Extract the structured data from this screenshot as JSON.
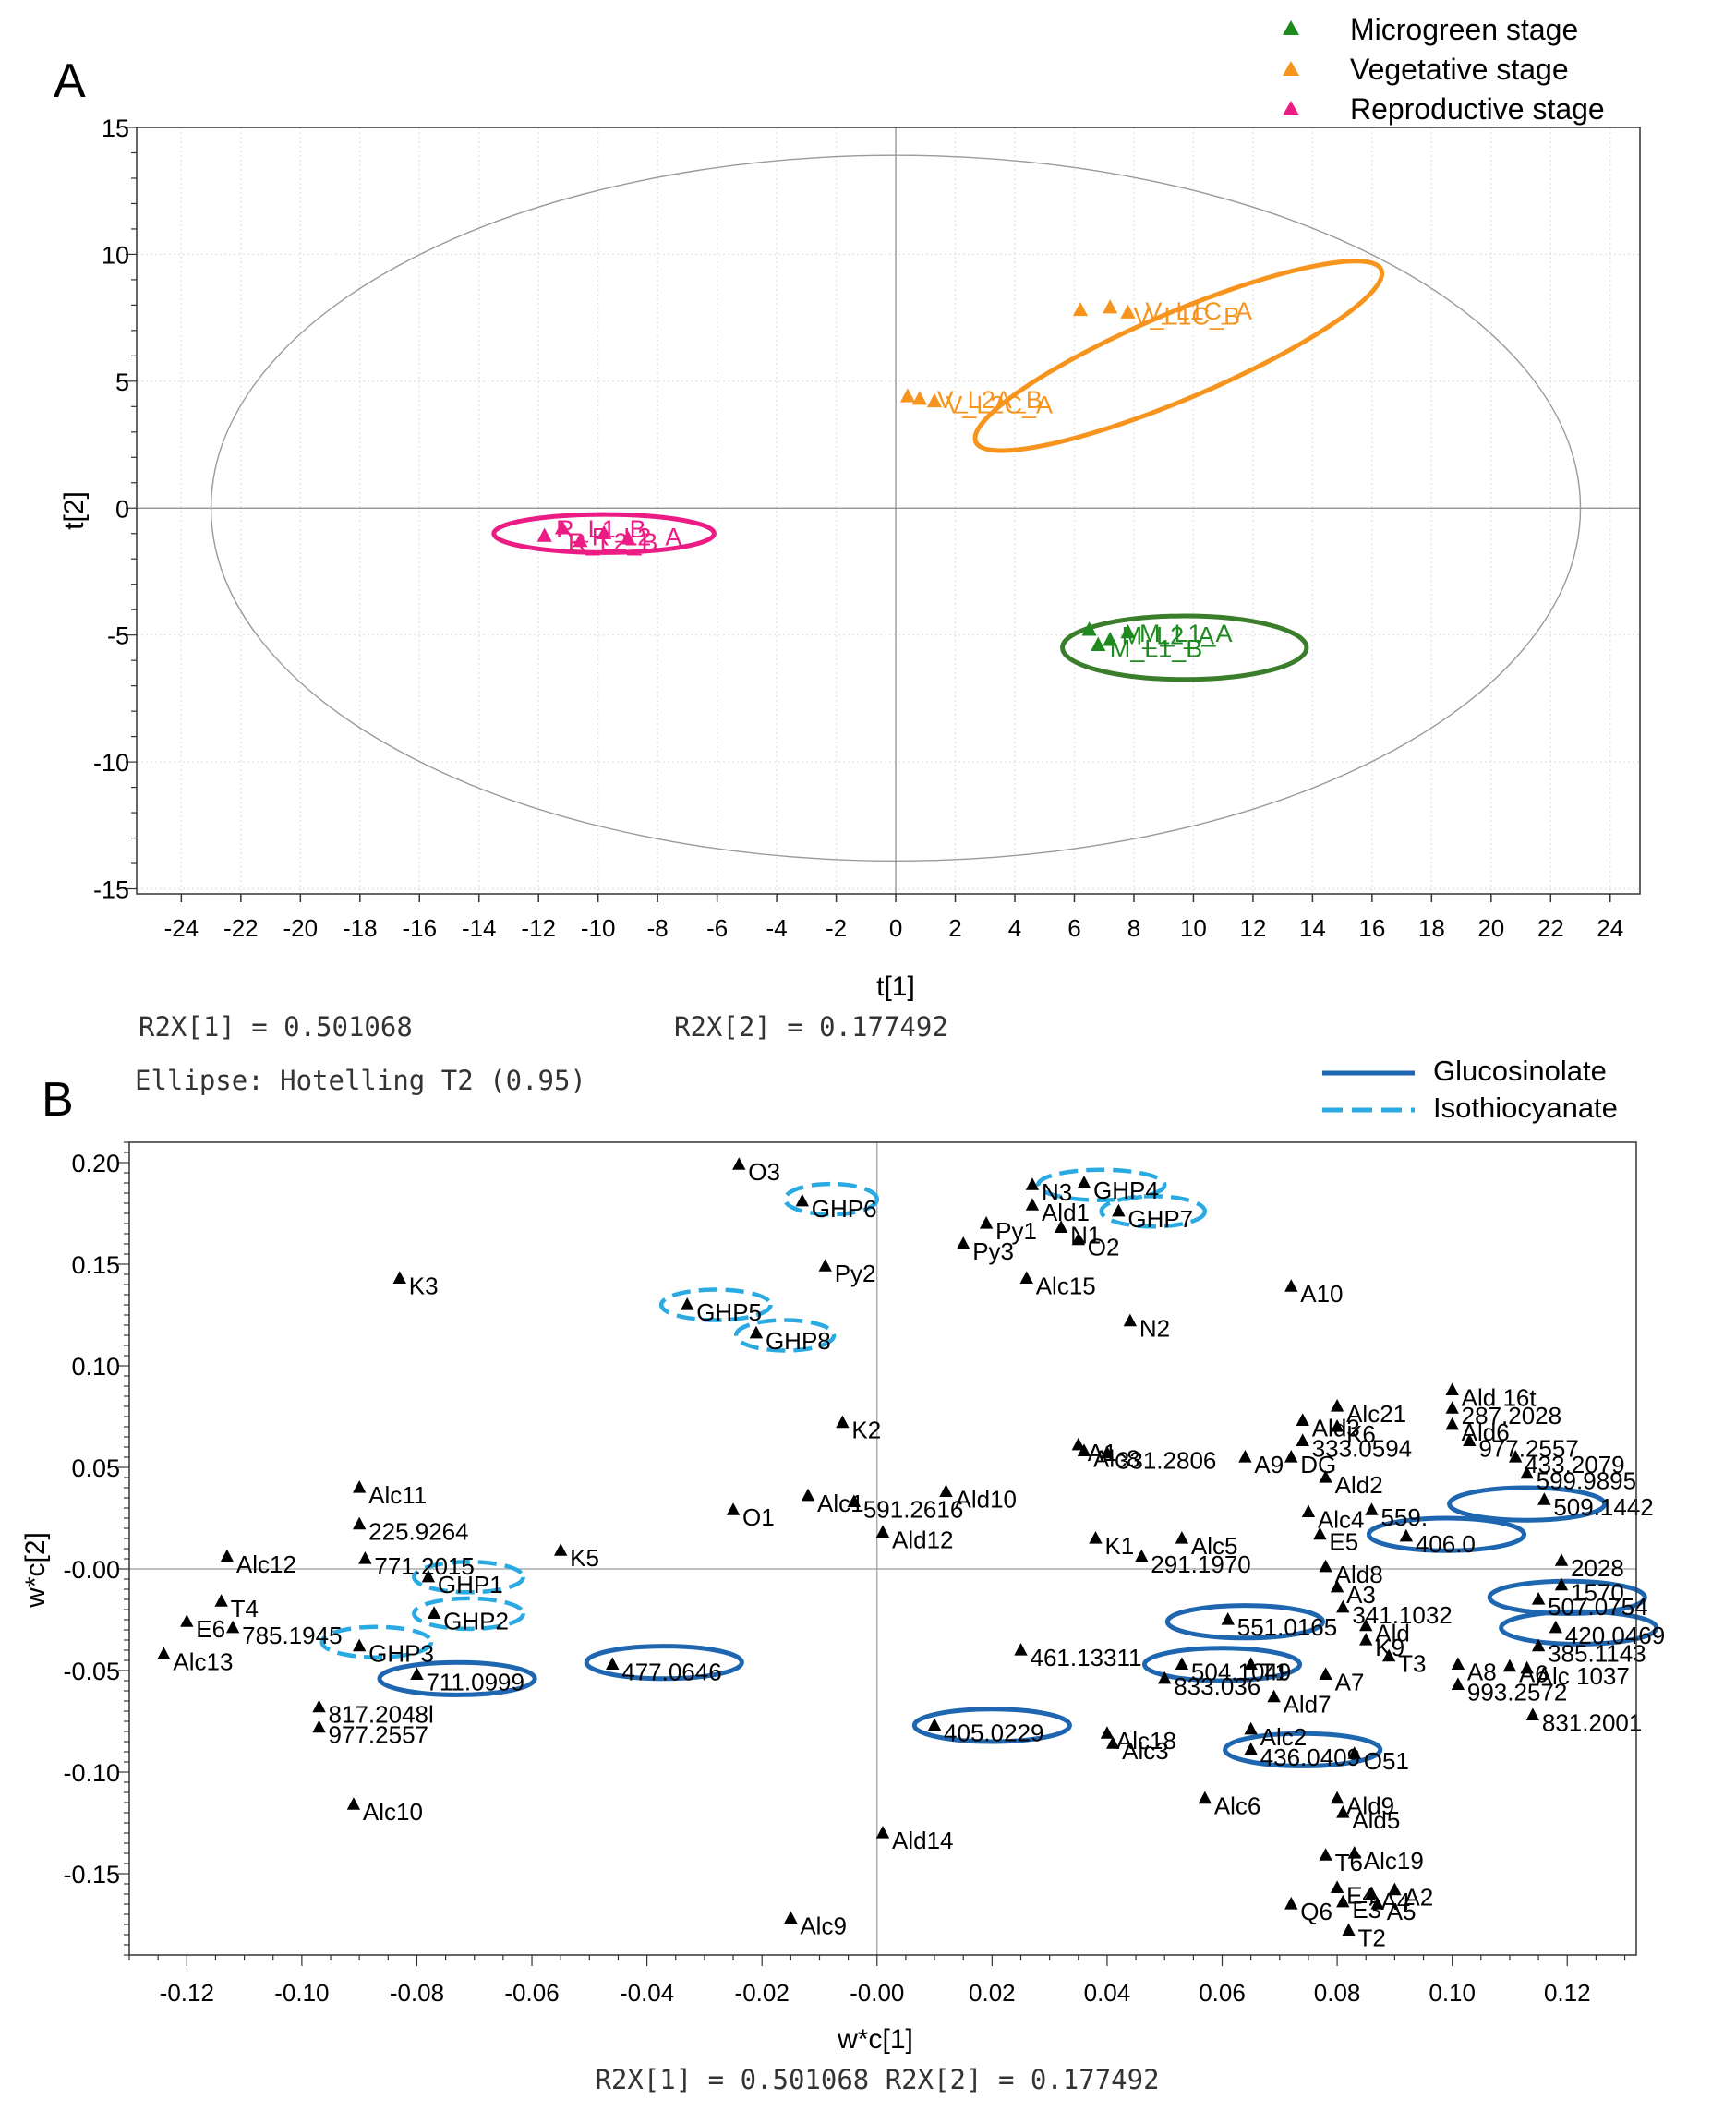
{
  "figure": {
    "panel_a_label": "A",
    "panel_b_label": "B"
  },
  "chart_data": [
    {
      "type": "scatter",
      "panel": "A",
      "xlabel": "t[1]",
      "ylabel": "t[2]",
      "xlim": [
        -25.5,
        25
      ],
      "ylim": [
        -15.2,
        15
      ],
      "xticks": [
        "-24",
        "-22",
        "-20",
        "-18",
        "-16",
        "-14",
        "-12",
        "-10",
        "-8",
        "-6",
        "-4",
        "-2",
        "0",
        "2",
        "4",
        "6",
        "8",
        "10",
        "12",
        "14",
        "16",
        "18",
        "20",
        "22",
        "24"
      ],
      "yticks": [
        "15",
        "10",
        "5",
        "0",
        "-5",
        "-10",
        "-15"
      ],
      "grid": true,
      "footer_left": "R2X[1] = 0.501068",
      "footer_right": "R2X[2] = 0.177492",
      "ellipse_note": "Ellipse: Hotelling T2 (0.95)",
      "hotelling": {
        "cx": 0,
        "cy": 0,
        "rx": 23,
        "ry": 13.9
      },
      "legend_position": "top-right",
      "legend": [
        {
          "label": "Microgreen stage",
          "color": "#1e8a1e"
        },
        {
          "label": "Vegetative stage",
          "color": "#f7941d"
        },
        {
          "label": "Reproductive stage",
          "color": "#ec1c85"
        }
      ],
      "groups": [
        {
          "color": "#f7941d",
          "ring": "#f7941d",
          "ellipse": {
            "cx": 9.5,
            "cy": 6.0,
            "rx": 14.8,
            "ry": 1.7,
            "angle": -23
          },
          "points": [
            [
              6.2,
              7.8
            ],
            [
              7.2,
              7.9
            ],
            [
              7.8,
              7.7
            ],
            [
              0.4,
              4.4
            ],
            [
              0.8,
              4.3
            ],
            [
              1.3,
              4.2
            ]
          ],
          "labels": [
            {
              "text": "V_L1C_B",
              "x": 7.8,
              "y": 7.6
            },
            {
              "text": "V_L1C_A",
              "x": 8.2,
              "y": 7.8
            },
            {
              "text": "V_L2A_B",
              "x": 1.2,
              "y": 4.3
            },
            {
              "text": "V_L2C_A",
              "x": 1.5,
              "y": 4.1
            }
          ]
        },
        {
          "color": "#ec1c85",
          "ring": "#ec1c85",
          "ellipse": {
            "cx": -9.8,
            "cy": -1.0,
            "rx": 7.4,
            "ry": 0.75,
            "angle": 0
          },
          "points": [
            [
              -11.8,
              -1.1
            ],
            [
              -11.2,
              -0.8
            ],
            [
              -10.6,
              -1.3
            ],
            [
              -9.8,
              -1.0
            ],
            [
              -9.0,
              -1.2
            ]
          ],
          "labels": [
            {
              "text": "R_L1_B",
              "x": -11.6,
              "y": -0.8
            },
            {
              "text": "R_L2_B",
              "x": -11.2,
              "y": -1.3
            },
            {
              "text": "R_L2_A",
              "x": -10.4,
              "y": -1.1
            }
          ]
        },
        {
          "color": "#1e8a1e",
          "ring": "#3a7d2a",
          "ellipse": {
            "cx": 9.7,
            "cy": -5.5,
            "rx": 8.2,
            "ry": 1.25,
            "angle": 0
          },
          "points": [
            [
              6.5,
              -4.8
            ],
            [
              7.2,
              -5.2
            ],
            [
              7.8,
              -4.9
            ],
            [
              6.8,
              -5.4
            ]
          ],
          "labels": [
            {
              "text": "M_L2_A",
              "x": 7.4,
              "y": -5.0
            },
            {
              "text": "M_L1_B",
              "x": 7.0,
              "y": -5.5
            },
            {
              "text": "M_L1_A",
              "x": 8.0,
              "y": -4.9
            }
          ]
        }
      ]
    },
    {
      "type": "scatter",
      "panel": "B",
      "xlabel": "w*c[1]",
      "ylabel": "w*c[2]",
      "xlim": [
        -0.13,
        0.132
      ],
      "ylim": [
        -0.19,
        0.21
      ],
      "xticks": [
        "-0.12",
        "-0.10",
        "-0.08",
        "-0.06",
        "-0.04",
        "-0.02",
        "-0.00",
        "0.02",
        "0.04",
        "0.06",
        "0.08",
        "0.10",
        "0.12"
      ],
      "yticks": [
        "0.20",
        "0.15",
        "0.10",
        "0.05",
        "-0.00",
        "-0.05",
        "-0.10",
        "-0.15"
      ],
      "grid": false,
      "footer": "R2X[1] = 0.501068 R2X[2] = 0.177492",
      "legend_position": "top-right",
      "legend": [
        {
          "label": "Glucosinolate",
          "style": "solid",
          "color": "#1f66b0"
        },
        {
          "label": "Isothiocyanate",
          "style": "dashed",
          "color": "#29aae2"
        }
      ],
      "points": [
        [
          "O3",
          -0.024,
          0.199
        ],
        [
          "GHP6",
          -0.013,
          0.181
        ],
        [
          "N3",
          0.027,
          0.189
        ],
        [
          "GHP4",
          0.036,
          0.19
        ],
        [
          "Ald1",
          0.027,
          0.179
        ],
        [
          "GHP7",
          0.042,
          0.176
        ],
        [
          "Py1",
          0.019,
          0.17
        ],
        [
          "N1",
          0.032,
          0.168
        ],
        [
          "O2",
          0.035,
          0.162
        ],
        [
          "Py3",
          0.015,
          0.16
        ],
        [
          "Py2",
          -0.009,
          0.149
        ],
        [
          "Alc15",
          0.026,
          0.143
        ],
        [
          "K3",
          -0.083,
          0.143
        ],
        [
          "A10",
          0.072,
          0.139
        ],
        [
          "GHP5",
          -0.033,
          0.13
        ],
        [
          "N2",
          0.044,
          0.122
        ],
        [
          "GHP8",
          -0.021,
          0.116
        ],
        [
          "Ald 16t",
          0.1,
          0.088
        ],
        [
          "Alc21",
          0.08,
          0.08
        ],
        [
          "287.2028",
          0.1,
          0.079
        ],
        [
          "Ald3",
          0.074,
          0.073
        ],
        [
          "K6",
          0.08,
          0.07
        ],
        [
          "Ald6",
          0.1,
          0.071
        ],
        [
          "K2",
          -0.006,
          0.072
        ],
        [
          "333.0594",
          0.074,
          0.063
        ],
        [
          "977.2557",
          0.103,
          0.063
        ],
        [
          "A1",
          0.035,
          0.061
        ],
        [
          "Alc8",
          0.036,
          0.058
        ],
        [
          "331.2806",
          0.04,
          0.057
        ],
        [
          "A9",
          0.064,
          0.055
        ],
        [
          "DG",
          0.072,
          0.055
        ],
        [
          "433.2079",
          0.111,
          0.055
        ],
        [
          "Ald2",
          0.078,
          0.045
        ],
        [
          "599.9895",
          0.113,
          0.047
        ],
        [
          "Alc11",
          -0.09,
          0.04
        ],
        [
          "Ald10",
          0.012,
          0.038
        ],
        [
          "Alc1",
          -0.012,
          0.036
        ],
        [
          "591.2616",
          -0.004,
          0.033
        ],
        [
          "509.1442",
          0.116,
          0.034
        ],
        [
          "O1",
          -0.025,
          0.029
        ],
        [
          "Alc4",
          0.075,
          0.028
        ],
        [
          "559.",
          0.086,
          0.029
        ],
        [
          "225.9264",
          -0.09,
          0.022
        ],
        [
          "Ald12",
          0.001,
          0.018
        ],
        [
          "E5",
          0.077,
          0.017
        ],
        [
          "K1",
          0.038,
          0.015
        ],
        [
          "Alc5",
          0.053,
          0.015
        ],
        [
          "Alc12",
          -0.113,
          0.006
        ],
        [
          "771.2015",
          -0.089,
          0.005
        ],
        [
          "K5",
          -0.055,
          0.009
        ],
        [
          "291.1970",
          0.046,
          0.006
        ],
        [
          "2028",
          0.119,
          0.004
        ],
        [
          "Ald8",
          0.078,
          0.001
        ],
        [
          "GHP1",
          -0.078,
          -0.004
        ],
        [
          "T4",
          -0.114,
          -0.016
        ],
        [
          "1570",
          0.119,
          -0.008
        ],
        [
          "A3",
          0.08,
          -0.009
        ],
        [
          "341.1032",
          0.081,
          -0.019
        ],
        [
          "GHP2",
          -0.077,
          -0.022
        ],
        [
          "E6",
          -0.12,
          -0.026
        ],
        [
          "785.1945",
          -0.112,
          -0.029
        ],
        [
          "Ald",
          0.085,
          -0.028
        ],
        [
          "K9",
          0.085,
          -0.035
        ],
        [
          "T3",
          0.089,
          -0.043
        ],
        [
          "GHP3",
          -0.09,
          -0.038
        ],
        [
          "Alc13",
          -0.124,
          -0.042
        ],
        [
          "461.13311",
          0.025,
          -0.04
        ],
        [
          "A8",
          0.101,
          -0.047
        ],
        [
          "A6",
          0.11,
          -0.048
        ],
        [
          "385.1143",
          0.115,
          -0.038
        ],
        [
          "Alc 1037",
          0.113,
          -0.049
        ],
        [
          "T1",
          0.065,
          -0.047
        ],
        [
          "A7",
          0.078,
          -0.052
        ],
        [
          "833.036",
          0.05,
          -0.054
        ],
        [
          "Ald7",
          0.069,
          -0.063
        ],
        [
          "993.2572",
          0.101,
          -0.057
        ],
        [
          "831.2001",
          0.114,
          -0.072
        ],
        [
          "817.2048l",
          -0.097,
          -0.068
        ],
        [
          "977.2557",
          -0.097,
          -0.078
        ],
        [
          "Alc2",
          0.065,
          -0.079
        ],
        [
          "Alc18",
          0.04,
          -0.081
        ],
        [
          "Alc3",
          0.041,
          -0.086
        ],
        [
          "O51",
          0.083,
          -0.091
        ],
        [
          "Alc10",
          -0.091,
          -0.116
        ],
        [
          "Alc6",
          0.057,
          -0.113
        ],
        [
          "Ald9",
          0.08,
          -0.113
        ],
        [
          "Ald5",
          0.081,
          -0.12
        ],
        [
          "Ald14",
          0.001,
          -0.13
        ],
        [
          "T6",
          0.078,
          -0.141
        ],
        [
          "Alc19",
          0.083,
          -0.14
        ],
        [
          "E4",
          0.08,
          -0.157
        ],
        [
          "A4",
          0.086,
          -0.16
        ],
        [
          "A2",
          0.09,
          -0.158
        ],
        [
          "E3",
          0.081,
          -0.164
        ],
        [
          "A5",
          0.087,
          -0.165
        ],
        [
          "Q6",
          0.072,
          -0.165
        ],
        [
          "Alc9",
          -0.015,
          -0.172
        ],
        [
          "T2",
          0.082,
          -0.178
        ],
        [
          "711.0999",
          -0.08,
          -0.052
        ],
        [
          "477.0646",
          -0.046,
          -0.047
        ],
        [
          "405.0229",
          0.01,
          -0.077
        ],
        [
          "551.0165",
          0.061,
          -0.025
        ],
        [
          "504.1049",
          0.053,
          -0.047
        ],
        [
          "436.0409",
          0.065,
          -0.089
        ],
        [
          "406.0",
          0.092,
          0.016
        ],
        [
          "507.0754",
          0.115,
          -0.015
        ],
        [
          "420.0469",
          0.118,
          -0.029
        ]
      ],
      "ellipses": [
        {
          "type": "Isothiocyanate",
          "cx": -0.008,
          "cy": 0.182,
          "rx": 0.008,
          "ry": 0.0075
        },
        {
          "type": "Isothiocyanate",
          "cx": 0.039,
          "cy": 0.189,
          "rx": 0.011,
          "ry": 0.0075
        },
        {
          "type": "Isothiocyanate",
          "cx": 0.048,
          "cy": 0.176,
          "rx": 0.009,
          "ry": 0.0075
        },
        {
          "type": "Isothiocyanate",
          "cx": -0.028,
          "cy": 0.13,
          "rx": 0.0095,
          "ry": 0.0075
        },
        {
          "type": "Isothiocyanate",
          "cx": -0.016,
          "cy": 0.115,
          "rx": 0.0085,
          "ry": 0.0075
        },
        {
          "type": "Isothiocyanate",
          "cx": -0.071,
          "cy": -0.004,
          "rx": 0.0095,
          "ry": 0.0075
        },
        {
          "type": "Isothiocyanate",
          "cx": -0.071,
          "cy": -0.022,
          "rx": 0.0095,
          "ry": 0.0075
        },
        {
          "type": "Isothiocyanate",
          "cx": -0.087,
          "cy": -0.036,
          "rx": 0.0095,
          "ry": 0.0075
        },
        {
          "type": "Glucosinolate",
          "cx": -0.073,
          "cy": -0.054,
          "rx": 0.0135,
          "ry": 0.008
        },
        {
          "type": "Glucosinolate",
          "cx": -0.037,
          "cy": -0.046,
          "rx": 0.0135,
          "ry": 0.008
        },
        {
          "type": "Glucosinolate",
          "cx": 0.02,
          "cy": -0.077,
          "rx": 0.0135,
          "ry": 0.008
        },
        {
          "type": "Glucosinolate",
          "cx": 0.064,
          "cy": -0.026,
          "rx": 0.0135,
          "ry": 0.008
        },
        {
          "type": "Glucosinolate",
          "cx": 0.06,
          "cy": -0.047,
          "rx": 0.0135,
          "ry": 0.008
        },
        {
          "type": "Glucosinolate",
          "cx": 0.074,
          "cy": -0.089,
          "rx": 0.0135,
          "ry": 0.008
        },
        {
          "type": "Glucosinolate",
          "cx": 0.099,
          "cy": 0.017,
          "rx": 0.0135,
          "ry": 0.008
        },
        {
          "type": "Glucosinolate",
          "cx": 0.113,
          "cy": 0.032,
          "rx": 0.0135,
          "ry": 0.008
        },
        {
          "type": "Glucosinolate",
          "cx": 0.12,
          "cy": -0.014,
          "rx": 0.0135,
          "ry": 0.008
        },
        {
          "type": "Glucosinolate",
          "cx": 0.122,
          "cy": -0.029,
          "rx": 0.0135,
          "ry": 0.008
        }
      ]
    }
  ]
}
